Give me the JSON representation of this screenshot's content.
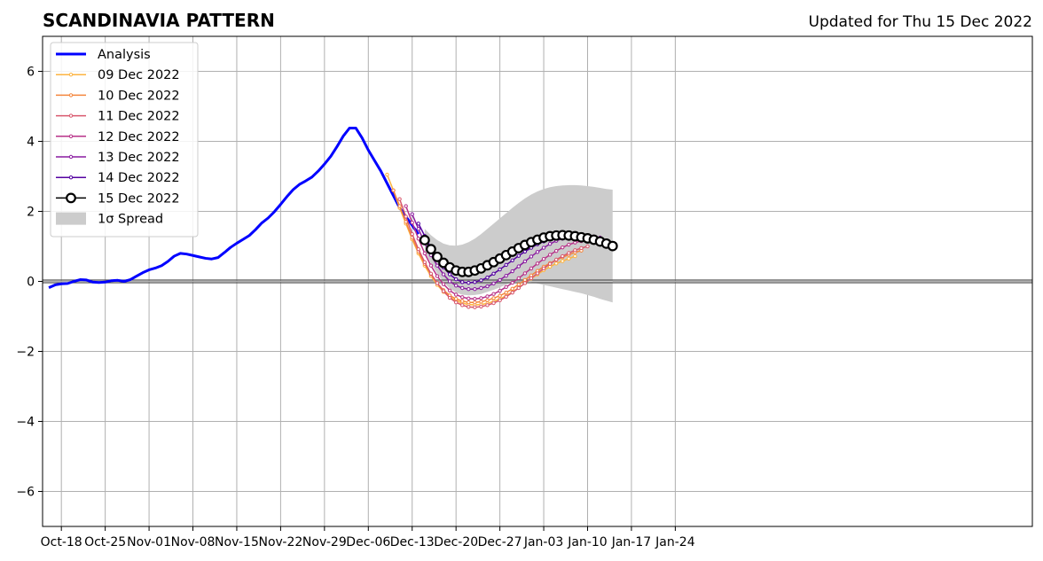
{
  "header": {
    "title": "SCANDINAVIA PATTERN",
    "updated": "Updated for Thu 15 Dec 2022"
  },
  "chart_data": {
    "type": "line",
    "title": "SCANDINAVIA PATTERN",
    "subtitle": "Updated for Thu 15 Dec 2022",
    "xlabel": "",
    "ylabel": "",
    "x_unit": "days since Oct-18 (axis labeled by date)",
    "xlim": [
      -3,
      155
    ],
    "ylim": [
      -7,
      7
    ],
    "grid": true,
    "legend_position": "top-left",
    "x_ticks": [
      {
        "day": 0,
        "label": "Oct-18"
      },
      {
        "day": 7,
        "label": "Oct-25"
      },
      {
        "day": 14,
        "label": "Nov-01"
      },
      {
        "day": 21,
        "label": "Nov-08"
      },
      {
        "day": 28,
        "label": "Nov-15"
      },
      {
        "day": 35,
        "label": "Nov-22"
      },
      {
        "day": 42,
        "label": "Nov-29"
      },
      {
        "day": 49,
        "label": "Dec-06"
      },
      {
        "day": 56,
        "label": "Dec-13"
      },
      {
        "day": 63,
        "label": "Dec-20"
      },
      {
        "day": 70,
        "label": "Dec-27"
      },
      {
        "day": 77,
        "label": "Jan-03"
      },
      {
        "day": 84,
        "label": "Jan-10"
      },
      {
        "day": 91,
        "label": "Jan-17"
      },
      {
        "day": 98,
        "label": "Jan-24"
      }
    ],
    "y_ticks": [
      {
        "value": 6,
        "label": "6"
      },
      {
        "value": 4,
        "label": "4"
      },
      {
        "value": 2,
        "label": "2"
      },
      {
        "value": 0,
        "label": "0"
      },
      {
        "value": -2,
        "label": "−2"
      },
      {
        "value": -4,
        "label": "−4"
      },
      {
        "value": -6,
        "label": "−6"
      }
    ],
    "analysis": {
      "name": "Analysis",
      "color": "#0000ff",
      "x": [
        -2,
        -1,
        0,
        1,
        2,
        3,
        4,
        5,
        6,
        7,
        8,
        9,
        10,
        11,
        12,
        13,
        14,
        15,
        16,
        17,
        18,
        19,
        20,
        21,
        22,
        23,
        24,
        25,
        26,
        27,
        28,
        29,
        30,
        31,
        32,
        33,
        34,
        35,
        36,
        37,
        38,
        39,
        40,
        41,
        42,
        43,
        44,
        45,
        46,
        47,
        48,
        49,
        50,
        51,
        52,
        53,
        54,
        55,
        56,
        57
      ],
      "y": [
        -0.18,
        -0.1,
        -0.07,
        -0.06,
        0.0,
        0.05,
        0.04,
        -0.02,
        -0.03,
        -0.02,
        0.02,
        0.03,
        0.0,
        0.05,
        0.15,
        0.25,
        0.33,
        0.38,
        0.45,
        0.57,
        0.72,
        0.8,
        0.78,
        0.74,
        0.7,
        0.66,
        0.64,
        0.68,
        0.82,
        0.97,
        1.09,
        1.2,
        1.31,
        1.48,
        1.67,
        1.81,
        1.99,
        2.2,
        2.42,
        2.62,
        2.77,
        2.87,
        2.98,
        3.15,
        3.35,
        3.57,
        3.85,
        4.15,
        4.38,
        4.38,
        4.1,
        3.75,
        3.45,
        3.15,
        2.8,
        2.45,
        2.1,
        1.85,
        1.6,
        1.35
      ]
    },
    "forecasts": [
      {
        "name": "09 Dec 2022",
        "color": "#fcb441",
        "x": [
          52,
          53,
          54,
          55,
          56,
          57,
          58,
          59,
          60,
          61,
          62,
          63,
          64,
          65,
          66,
          67,
          68,
          69,
          70,
          71,
          72,
          73,
          74,
          75,
          76,
          77,
          78,
          79,
          80,
          81,
          82
        ],
        "y": [
          3.05,
          2.6,
          2.1,
          1.65,
          1.2,
          0.8,
          0.45,
          0.15,
          -0.1,
          -0.3,
          -0.45,
          -0.55,
          -0.62,
          -0.66,
          -0.67,
          -0.66,
          -0.63,
          -0.57,
          -0.5,
          -0.41,
          -0.3,
          -0.18,
          -0.05,
          0.08,
          0.2,
          0.32,
          0.42,
          0.51,
          0.58,
          0.65,
          0.72
        ]
      },
      {
        "name": "10 Dec 2022",
        "color": "#f4863d",
        "x": [
          53,
          54,
          55,
          56,
          57,
          58,
          59,
          60,
          61,
          62,
          63,
          64,
          65,
          66,
          67,
          68,
          69,
          70,
          71,
          72,
          73,
          74,
          75,
          76,
          77,
          78,
          79,
          80,
          81,
          82,
          83
        ],
        "y": [
          2.6,
          2.15,
          1.7,
          1.25,
          0.85,
          0.5,
          0.2,
          -0.05,
          -0.25,
          -0.4,
          -0.5,
          -0.56,
          -0.6,
          -0.6,
          -0.58,
          -0.54,
          -0.48,
          -0.41,
          -0.32,
          -0.21,
          -0.09,
          0.04,
          0.17,
          0.3,
          0.42,
          0.52,
          0.61,
          0.69,
          0.76,
          0.83,
          0.88
        ]
      },
      {
        "name": "11 Dec 2022",
        "color": "#d8586e",
        "x": [
          54,
          55,
          56,
          57,
          58,
          59,
          60,
          61,
          62,
          63,
          64,
          65,
          66,
          67,
          68,
          69,
          70,
          71,
          72,
          73,
          74,
          75,
          76,
          77,
          78,
          79,
          80,
          81,
          82,
          83,
          84
        ],
        "y": [
          2.35,
          1.85,
          1.35,
          0.92,
          0.55,
          0.22,
          -0.05,
          -0.28,
          -0.47,
          -0.6,
          -0.68,
          -0.73,
          -0.74,
          -0.72,
          -0.68,
          -0.62,
          -0.54,
          -0.44,
          -0.32,
          -0.19,
          -0.05,
          0.09,
          0.23,
          0.37,
          0.5,
          0.62,
          0.72,
          0.81,
          0.89,
          0.95,
          1.0
        ]
      },
      {
        "name": "12 Dec 2022",
        "color": "#b83289",
        "x": [
          55,
          56,
          57,
          58,
          59,
          60,
          61,
          62,
          63,
          64,
          65,
          66,
          67,
          68,
          69,
          70,
          71,
          72,
          73,
          74,
          75,
          76,
          77,
          78,
          79,
          80,
          81,
          82,
          83,
          84,
          85
        ],
        "y": [
          2.15,
          1.68,
          1.22,
          0.8,
          0.45,
          0.15,
          -0.08,
          -0.26,
          -0.38,
          -0.45,
          -0.49,
          -0.5,
          -0.48,
          -0.43,
          -0.36,
          -0.27,
          -0.16,
          -0.04,
          0.09,
          0.23,
          0.37,
          0.51,
          0.64,
          0.76,
          0.87,
          0.97,
          1.05,
          1.11,
          1.15,
          1.17,
          1.17
        ]
      },
      {
        "name": "13 Dec 2022",
        "color": "#8a1ca0",
        "x": [
          56,
          57,
          58,
          59,
          60,
          61,
          62,
          63,
          64,
          65,
          66,
          67,
          68,
          69,
          70,
          71,
          72,
          73,
          74,
          75,
          76,
          77,
          78,
          79,
          80,
          81,
          82,
          83,
          84,
          85,
          86
        ],
        "y": [
          1.92,
          1.5,
          1.1,
          0.75,
          0.45,
          0.2,
          0.0,
          -0.12,
          -0.19,
          -0.22,
          -0.22,
          -0.19,
          -0.14,
          -0.06,
          0.04,
          0.16,
          0.29,
          0.43,
          0.57,
          0.71,
          0.84,
          0.96,
          1.07,
          1.16,
          1.22,
          1.27,
          1.3,
          1.31,
          1.3,
          1.28,
          1.25
        ]
      },
      {
        "name": "14 Dec 2022",
        "color": "#5402a0",
        "x": [
          57,
          58,
          59,
          60,
          61,
          62,
          63,
          64,
          65,
          66,
          67,
          68,
          69,
          70,
          71,
          72,
          73,
          74,
          75,
          76,
          77,
          78,
          79,
          80,
          81,
          82,
          83,
          84,
          85,
          86,
          87
        ],
        "y": [
          1.65,
          1.3,
          0.96,
          0.66,
          0.4,
          0.2,
          0.06,
          -0.02,
          -0.04,
          -0.02,
          0.03,
          0.11,
          0.22,
          0.34,
          0.47,
          0.6,
          0.73,
          0.85,
          0.96,
          1.06,
          1.14,
          1.2,
          1.24,
          1.27,
          1.28,
          1.28,
          1.27,
          1.25,
          1.22,
          1.19,
          1.15
        ]
      },
      {
        "name": "15 Dec 2022",
        "color": "#000000",
        "marker": "open-circle",
        "x": [
          58,
          59,
          60,
          61,
          62,
          63,
          64,
          65,
          66,
          67,
          68,
          69,
          70,
          71,
          72,
          73,
          74,
          75,
          76,
          77,
          78,
          79,
          80,
          81,
          82,
          83,
          84,
          85,
          86,
          87,
          88
        ],
        "y": [
          1.18,
          0.92,
          0.7,
          0.53,
          0.4,
          0.31,
          0.27,
          0.27,
          0.31,
          0.37,
          0.46,
          0.55,
          0.65,
          0.75,
          0.85,
          0.95,
          1.04,
          1.12,
          1.19,
          1.25,
          1.29,
          1.31,
          1.32,
          1.31,
          1.29,
          1.26,
          1.23,
          1.19,
          1.14,
          1.08,
          1.01
        ]
      }
    ],
    "spread": {
      "name": "1σ Spread",
      "color": "#cccccc",
      "x": [
        58,
        59,
        60,
        61,
        62,
        63,
        64,
        65,
        66,
        67,
        68,
        69,
        70,
        71,
        72,
        73,
        74,
        75,
        76,
        77,
        78,
        79,
        80,
        81,
        82,
        83,
        84,
        85,
        86,
        87,
        88
      ],
      "upper": [
        1.5,
        1.32,
        1.18,
        1.08,
        1.03,
        1.02,
        1.05,
        1.12,
        1.22,
        1.35,
        1.5,
        1.65,
        1.8,
        1.95,
        2.1,
        2.24,
        2.37,
        2.48,
        2.57,
        2.64,
        2.69,
        2.72,
        2.74,
        2.75,
        2.75,
        2.74,
        2.72,
        2.7,
        2.67,
        2.64,
        2.62
      ],
      "lower": [
        0.85,
        0.52,
        0.22,
        -0.02,
        -0.2,
        -0.32,
        -0.38,
        -0.4,
        -0.39,
        -0.36,
        -0.3,
        -0.24,
        -0.17,
        -0.09,
        -0.02,
        0.02,
        0.01,
        -0.02,
        -0.06,
        -0.1,
        -0.14,
        -0.18,
        -0.22,
        -0.26,
        -0.3,
        -0.34,
        -0.39,
        -0.44,
        -0.5,
        -0.55,
        -0.6
      ]
    }
  }
}
